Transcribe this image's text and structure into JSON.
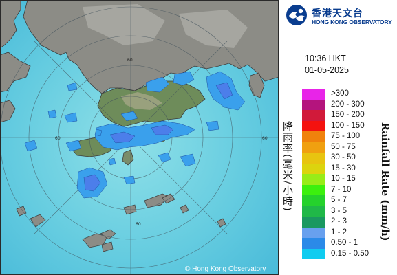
{
  "header": {
    "org_name_cn": "香港天文台",
    "org_name_en": "HONG KONG OBSERVATORY"
  },
  "timestamp": {
    "time": "10:36 HKT",
    "date": "01-05-2025"
  },
  "legend": {
    "title_cn": "降雨率(毫米/小時)",
    "title_en": "Rainfall Rate (mm/h)",
    "items": [
      {
        "label": ">300",
        "color": "#e824e8"
      },
      {
        "label": "200 - 300",
        "color": "#b4147d"
      },
      {
        "label": "150 - 200",
        "color": "#d11a3a"
      },
      {
        "label": "100 - 150",
        "color": "#f4120f"
      },
      {
        "label": "75 - 100",
        "color": "#f0820c"
      },
      {
        "label": "50 - 75",
        "color": "#f0a010"
      },
      {
        "label": "30 - 50",
        "color": "#e8c410"
      },
      {
        "label": "15 - 30",
        "color": "#dcd40e"
      },
      {
        "label": "10 - 15",
        "color": "#98ec18"
      },
      {
        "label": "7 - 10",
        "color": "#3cf00e"
      },
      {
        "label": "5 - 7",
        "color": "#25d22c"
      },
      {
        "label": "3 - 5",
        "color": "#20b848"
      },
      {
        "label": "2 - 3",
        "color": "#1a9860"
      },
      {
        "label": "1 - 2",
        "color": "#68a0ee"
      },
      {
        "label": "0.50 - 1",
        "color": "#2b8ae8"
      },
      {
        "label": "0.15 - 0.50",
        "color": "#10ccf0"
      }
    ]
  },
  "map": {
    "range_ring_labels": [
      "60",
      "60",
      "60",
      "60"
    ],
    "copyright": "© Hong Kong Observatory"
  }
}
